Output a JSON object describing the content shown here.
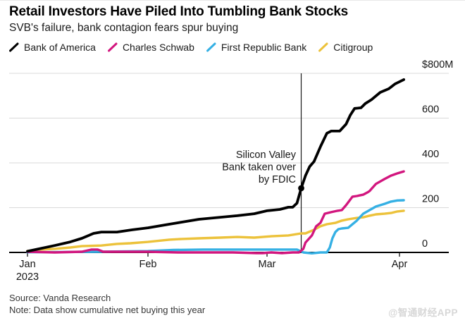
{
  "header": {
    "title": "Retail Investors Have Piled Into Tumbling Bank Stocks",
    "subtitle": "SVB's failure, bank contagion fears spur buying"
  },
  "legend": {
    "items": [
      {
        "label": "Bank of America",
        "color": "#000000"
      },
      {
        "label": "Charles Schwab",
        "color": "#d2167e"
      },
      {
        "label": "First Republic Bank",
        "color": "#35b0e4"
      },
      {
        "label": "Citigroup",
        "color": "#ecc23b"
      }
    ]
  },
  "chart_data": {
    "type": "line",
    "title": "Retail Investors Have Piled Into Tumbling Bank Stocks",
    "subtitle": "SVB's failure, bank contagion fears spur buying",
    "unit": "USD millions, cumulative net buying",
    "ylim": [
      0,
      800
    ],
    "grid": "horizontal",
    "legend_position": "top",
    "y_tick_labels": [
      "$800M",
      "600",
      "400",
      "200",
      "0"
    ],
    "y_tick_values": [
      800,
      600,
      400,
      200,
      0
    ],
    "x_axis": {
      "months": [
        "Jan",
        "Feb",
        "Mar",
        "Apr"
      ],
      "year": "2023",
      "month_start_days": [
        1,
        32,
        60,
        91
      ],
      "domain_days": [
        1,
        92
      ]
    },
    "series": [
      {
        "name": "Citigroup",
        "color": "#ecc23b",
        "points": [
          [
            1,
            6
          ],
          [
            4,
            13
          ],
          [
            8,
            16
          ],
          [
            12,
            22
          ],
          [
            15,
            28
          ],
          [
            20,
            31
          ],
          [
            24,
            38
          ],
          [
            27.5,
            41
          ],
          [
            32,
            47
          ],
          [
            37,
            57
          ],
          [
            40,
            60
          ],
          [
            44,
            63
          ],
          [
            49,
            66
          ],
          [
            53,
            69
          ],
          [
            57,
            66
          ],
          [
            61,
            72
          ],
          [
            65,
            76
          ],
          [
            68,
            85
          ],
          [
            69,
            85
          ],
          [
            71,
            101
          ],
          [
            72.5,
            117
          ],
          [
            74,
            126
          ],
          [
            76,
            132
          ],
          [
            77.5,
            142
          ],
          [
            79,
            148
          ],
          [
            81,
            154
          ],
          [
            82.5,
            157
          ],
          [
            84,
            164
          ],
          [
            85.5,
            170
          ],
          [
            87.5,
            173
          ],
          [
            89,
            176
          ],
          [
            90.5,
            183
          ],
          [
            92,
            186
          ]
        ]
      },
      {
        "name": "First Republic Bank",
        "color": "#35b0e4",
        "points": [
          [
            1,
            1
          ],
          [
            10,
            2
          ],
          [
            20,
            3
          ],
          [
            32,
            6
          ],
          [
            38,
            11
          ],
          [
            45,
            13
          ],
          [
            57,
            13
          ],
          [
            64,
            13
          ],
          [
            67,
            13
          ],
          [
            68.5,
            0
          ],
          [
            70.5,
            -4
          ],
          [
            72.5,
            0
          ],
          [
            74,
            0
          ],
          [
            74.7,
            22
          ],
          [
            75.3,
            63
          ],
          [
            76,
            91
          ],
          [
            76.7,
            104
          ],
          [
            77.5,
            107
          ],
          [
            79,
            110
          ],
          [
            81,
            142
          ],
          [
            82.5,
            173
          ],
          [
            84,
            189
          ],
          [
            85.5,
            205
          ],
          [
            87.5,
            217
          ],
          [
            89,
            227
          ],
          [
            90.5,
            232
          ],
          [
            92,
            233
          ]
        ]
      },
      {
        "name": "Charles Schwab",
        "color": "#d2167e",
        "points": [
          [
            1,
            3
          ],
          [
            8,
            0
          ],
          [
            15,
            3
          ],
          [
            17.5,
            13
          ],
          [
            19,
            13
          ],
          [
            20.5,
            3
          ],
          [
            25,
            3
          ],
          [
            32,
            3
          ],
          [
            39,
            0
          ],
          [
            45,
            0
          ],
          [
            52,
            0
          ],
          [
            57.5,
            -3
          ],
          [
            59,
            -3
          ],
          [
            61,
            0
          ],
          [
            63.5,
            -3
          ],
          [
            66,
            0
          ],
          [
            67.5,
            0
          ],
          [
            68.5,
            16
          ],
          [
            69,
            44
          ],
          [
            70.5,
            76
          ],
          [
            71.5,
            117
          ],
          [
            72.5,
            132
          ],
          [
            73.5,
            173
          ],
          [
            75,
            180
          ],
          [
            76.5,
            186
          ],
          [
            77.5,
            189
          ],
          [
            78.5,
            211
          ],
          [
            80,
            249
          ],
          [
            81,
            252
          ],
          [
            82.5,
            258
          ],
          [
            83.5,
            268
          ],
          [
            84,
            274
          ],
          [
            85.5,
            306
          ],
          [
            87.5,
            328
          ],
          [
            89,
            343
          ],
          [
            90.5,
            353
          ],
          [
            92,
            362
          ]
        ]
      },
      {
        "name": "Bank of America",
        "color": "#000000",
        "points": [
          [
            1,
            5
          ],
          [
            4,
            16
          ],
          [
            8,
            31
          ],
          [
            12,
            47
          ],
          [
            15,
            63
          ],
          [
            18,
            85
          ],
          [
            20,
            91
          ],
          [
            24,
            91
          ],
          [
            28,
            101
          ],
          [
            32,
            110
          ],
          [
            37,
            126
          ],
          [
            44,
            148
          ],
          [
            53,
            164
          ],
          [
            57,
            173
          ],
          [
            60,
            186
          ],
          [
            63,
            192
          ],
          [
            65,
            202
          ],
          [
            66,
            202
          ],
          [
            67,
            220
          ],
          [
            68,
            287
          ],
          [
            69,
            343
          ],
          [
            70,
            384
          ],
          [
            71,
            406
          ],
          [
            72.5,
            472
          ],
          [
            74,
            532
          ],
          [
            75,
            542
          ],
          [
            77,
            542
          ],
          [
            78.5,
            573
          ],
          [
            79.5,
            614
          ],
          [
            80.5,
            643
          ],
          [
            82,
            646
          ],
          [
            83,
            665
          ],
          [
            84.5,
            683
          ],
          [
            86.5,
            715
          ],
          [
            88.5,
            731
          ],
          [
            90,
            753
          ],
          [
            92,
            772
          ]
        ]
      }
    ],
    "annotation": {
      "lines": [
        "Silicon Valley",
        "Bank taken over",
        "by FDIC"
      ],
      "event_day": 68,
      "marker_series": "Bank of America",
      "marker_value": 287
    }
  },
  "footer": {
    "source": "Source: Vanda Research",
    "note": "Note: Data show cumulative net buying this year"
  },
  "watermark": "@智通财经APP"
}
